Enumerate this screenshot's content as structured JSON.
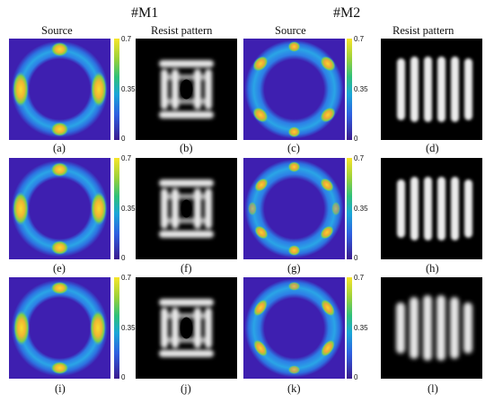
{
  "headers": {
    "m1": "#M1",
    "m2": "#M2",
    "source": "Source",
    "resist": "Resist pattern"
  },
  "colorbar": {
    "max": "0.7",
    "mid": "0.35",
    "min": "0"
  },
  "captions": [
    "(a)",
    "(b)",
    "(c)",
    "(d)",
    "(e)",
    "(f)",
    "(g)",
    "(h)",
    "(i)",
    "(j)",
    "(k)",
    "(l)"
  ],
  "colors": {
    "source_bg": "#3e1fb0",
    "ring": "#2b9be8",
    "hot": "#f5e02a",
    "resist_bg": "#000000",
    "resist_fg": "#e8e8e8"
  }
}
